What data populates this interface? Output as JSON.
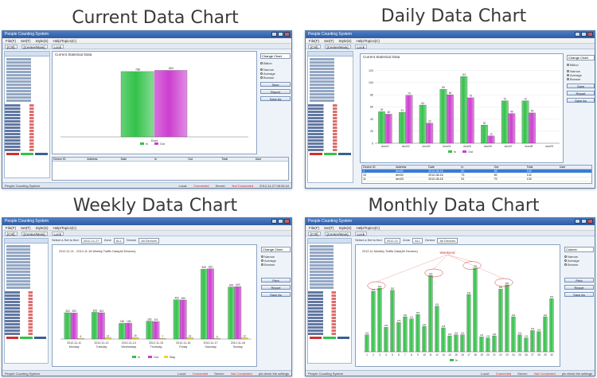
{
  "headings": {
    "current": "Current Data Chart",
    "daily": "Daily Data Chart",
    "weekly": "Weekly Data Chart",
    "monthly": "Monthly Data Chart"
  },
  "app": {
    "title": "People Counting System",
    "menu": [
      "File(F)",
      "Set(T)",
      "Style(S)",
      "Help/Topics(C)"
    ],
    "tabs": [
      "[Ctrl]",
      "[Center/Main]",
      "Lock"
    ],
    "status_prefix": "People Counting System",
    "status_local": "Local:",
    "status_connected": "Connected",
    "status_server": "Server:",
    "status_not_connected": "Not Connected",
    "status_hint": "pls check the settings"
  },
  "current": {
    "panel_title": "Current Statistical Data",
    "select": "Change Chart",
    "options": [
      "Billion",
      "Narrow",
      "Average",
      "Browse"
    ],
    "buttons": [
      "Save",
      "Report",
      "Save As"
    ],
    "time": "2012-11-27 08:34:44"
  },
  "daily": {
    "panel_title": "Current Statistical Data",
    "select": "Change Chart",
    "options": [
      "Billion",
      "Narrow",
      "Average",
      "Browse"
    ],
    "buttons": [
      "Save",
      "Report",
      "Save As"
    ],
    "table_headers": [
      "Device ID",
      "Address",
      "Date",
      "In",
      "Out",
      "Total",
      "User"
    ],
    "table_rows": [
      [
        "1",
        "dev01",
        "2012-08-16",
        "52",
        "48",
        "100",
        ""
      ],
      [
        "10",
        "dev02",
        "2012-08-16",
        "73",
        "69",
        "142",
        ""
      ],
      [
        "11",
        "dev03",
        "2012-08-16",
        "51",
        "79",
        "130",
        ""
      ],
      [
        "12",
        "dev04",
        "2012-08-16",
        "89",
        "68",
        "157",
        ""
      ],
      [
        "13",
        "dev05",
        "2012-08-16",
        "110",
        "75",
        "185",
        ""
      ]
    ]
  },
  "weekly": {
    "filter_label": "Select a Set to find",
    "filter_date": "2012-11-27",
    "filter_zone": "Zone",
    "filter_zone_val": "ALL",
    "filter_device": "Device",
    "filter_device_val": "All Devices",
    "chart_title": "2012-11-11 - 2012-11-18 Weekly Traffic Data(All Devices)",
    "select": "Change Chart",
    "options": [
      "Narrow",
      "Average",
      "Browse"
    ],
    "buttons": [
      "Print",
      "Report",
      "Save As"
    ]
  },
  "monthly": {
    "filter_label": "Select a Set to find",
    "filter_date": "2012-11",
    "filter_zone": "Zone",
    "filter_zone_val": "ALL",
    "filter_device": "Device",
    "filter_device_val": "All Devices",
    "chart_title": "2012-11 Monthly Traffic Data(All Devices)",
    "weekend_label": "Weekend",
    "select": "Column",
    "options": [
      "Narrow",
      "Average",
      "Browse"
    ],
    "buttons": [
      "Print",
      "Report",
      "Save As"
    ]
  },
  "colors": {
    "in": "#33c24a",
    "out": "#cc3fd0",
    "stay": "#f4d52a",
    "title_blue": "#2d5ca3"
  },
  "chart_data": [
    {
      "type": "bar",
      "title": "",
      "categories": [
        "Door"
      ],
      "series": [
        {
          "name": "In",
          "values": [
            786
          ]
        },
        {
          "name": "Out",
          "values": [
            800
          ]
        }
      ],
      "ylim": [
        0,
        900
      ]
    },
    {
      "type": "bar",
      "title": "",
      "categories": [
        "door01",
        "door02",
        "door03",
        "door04",
        "door05",
        "door06",
        "door07",
        "door08",
        "door09"
      ],
      "series": [
        {
          "name": "In",
          "values": [
            52,
            51,
            63,
            89,
            110,
            30,
            70,
            70,
            0
          ]
        },
        {
          "name": "Out",
          "values": [
            48,
            79,
            33,
            80,
            75,
            12,
            49,
            50,
            0
          ]
        }
      ],
      "yticks": [
        0,
        20,
        40,
        60,
        80,
        100,
        120
      ],
      "ylim": [
        0,
        130
      ]
    },
    {
      "type": "bar",
      "title": "2012-11-11 - 2012-11-18 Weekly Traffic Data(All Devices)",
      "categories": [
        "2012-11-11 Monday",
        "2012-11-12 Tuesday",
        "2012-11-14 Wednesday",
        "2012-11-15 Thursday",
        "2012-11-16 Friday",
        "2012-11-17 Saturday",
        "2012-11-18 Sunday"
      ],
      "series": [
        {
          "name": "In",
          "values": [
            303,
            308,
            180,
            206,
            453,
            805,
            600
          ]
        },
        {
          "name": "Out",
          "values": [
            300,
            303,
            183,
            201,
            450,
            810,
            603
          ]
        },
        {
          "name": "Stay",
          "values": [
            6,
            14,
            16,
            7,
            14,
            5,
            12
          ]
        }
      ],
      "ylim": [
        0,
        900
      ]
    },
    {
      "type": "bar",
      "title": "2012-11 Monthly Traffic Data(All Devices)",
      "categories": [
        "1",
        "2",
        "3",
        "4",
        "5",
        "6",
        "7",
        "8",
        "9",
        "10",
        "11",
        "12",
        "13",
        "14",
        "15",
        "16",
        "17",
        "18",
        "19",
        "20",
        "21",
        "22",
        "23",
        "24",
        "25",
        "26",
        "27",
        "28",
        "29",
        "30"
      ],
      "series": [
        {
          "name": "In",
          "values": [
            160,
            570,
            600,
            230,
            580,
            275,
            330,
            310,
            350,
            240,
            720,
            430,
            225,
            150,
            160,
            160,
            540,
            790,
            140,
            130,
            150,
            590,
            630,
            330,
            160,
            130,
            200,
            190,
            330,
            500
          ]
        }
      ],
      "ylim": [
        0,
        900
      ]
    }
  ]
}
